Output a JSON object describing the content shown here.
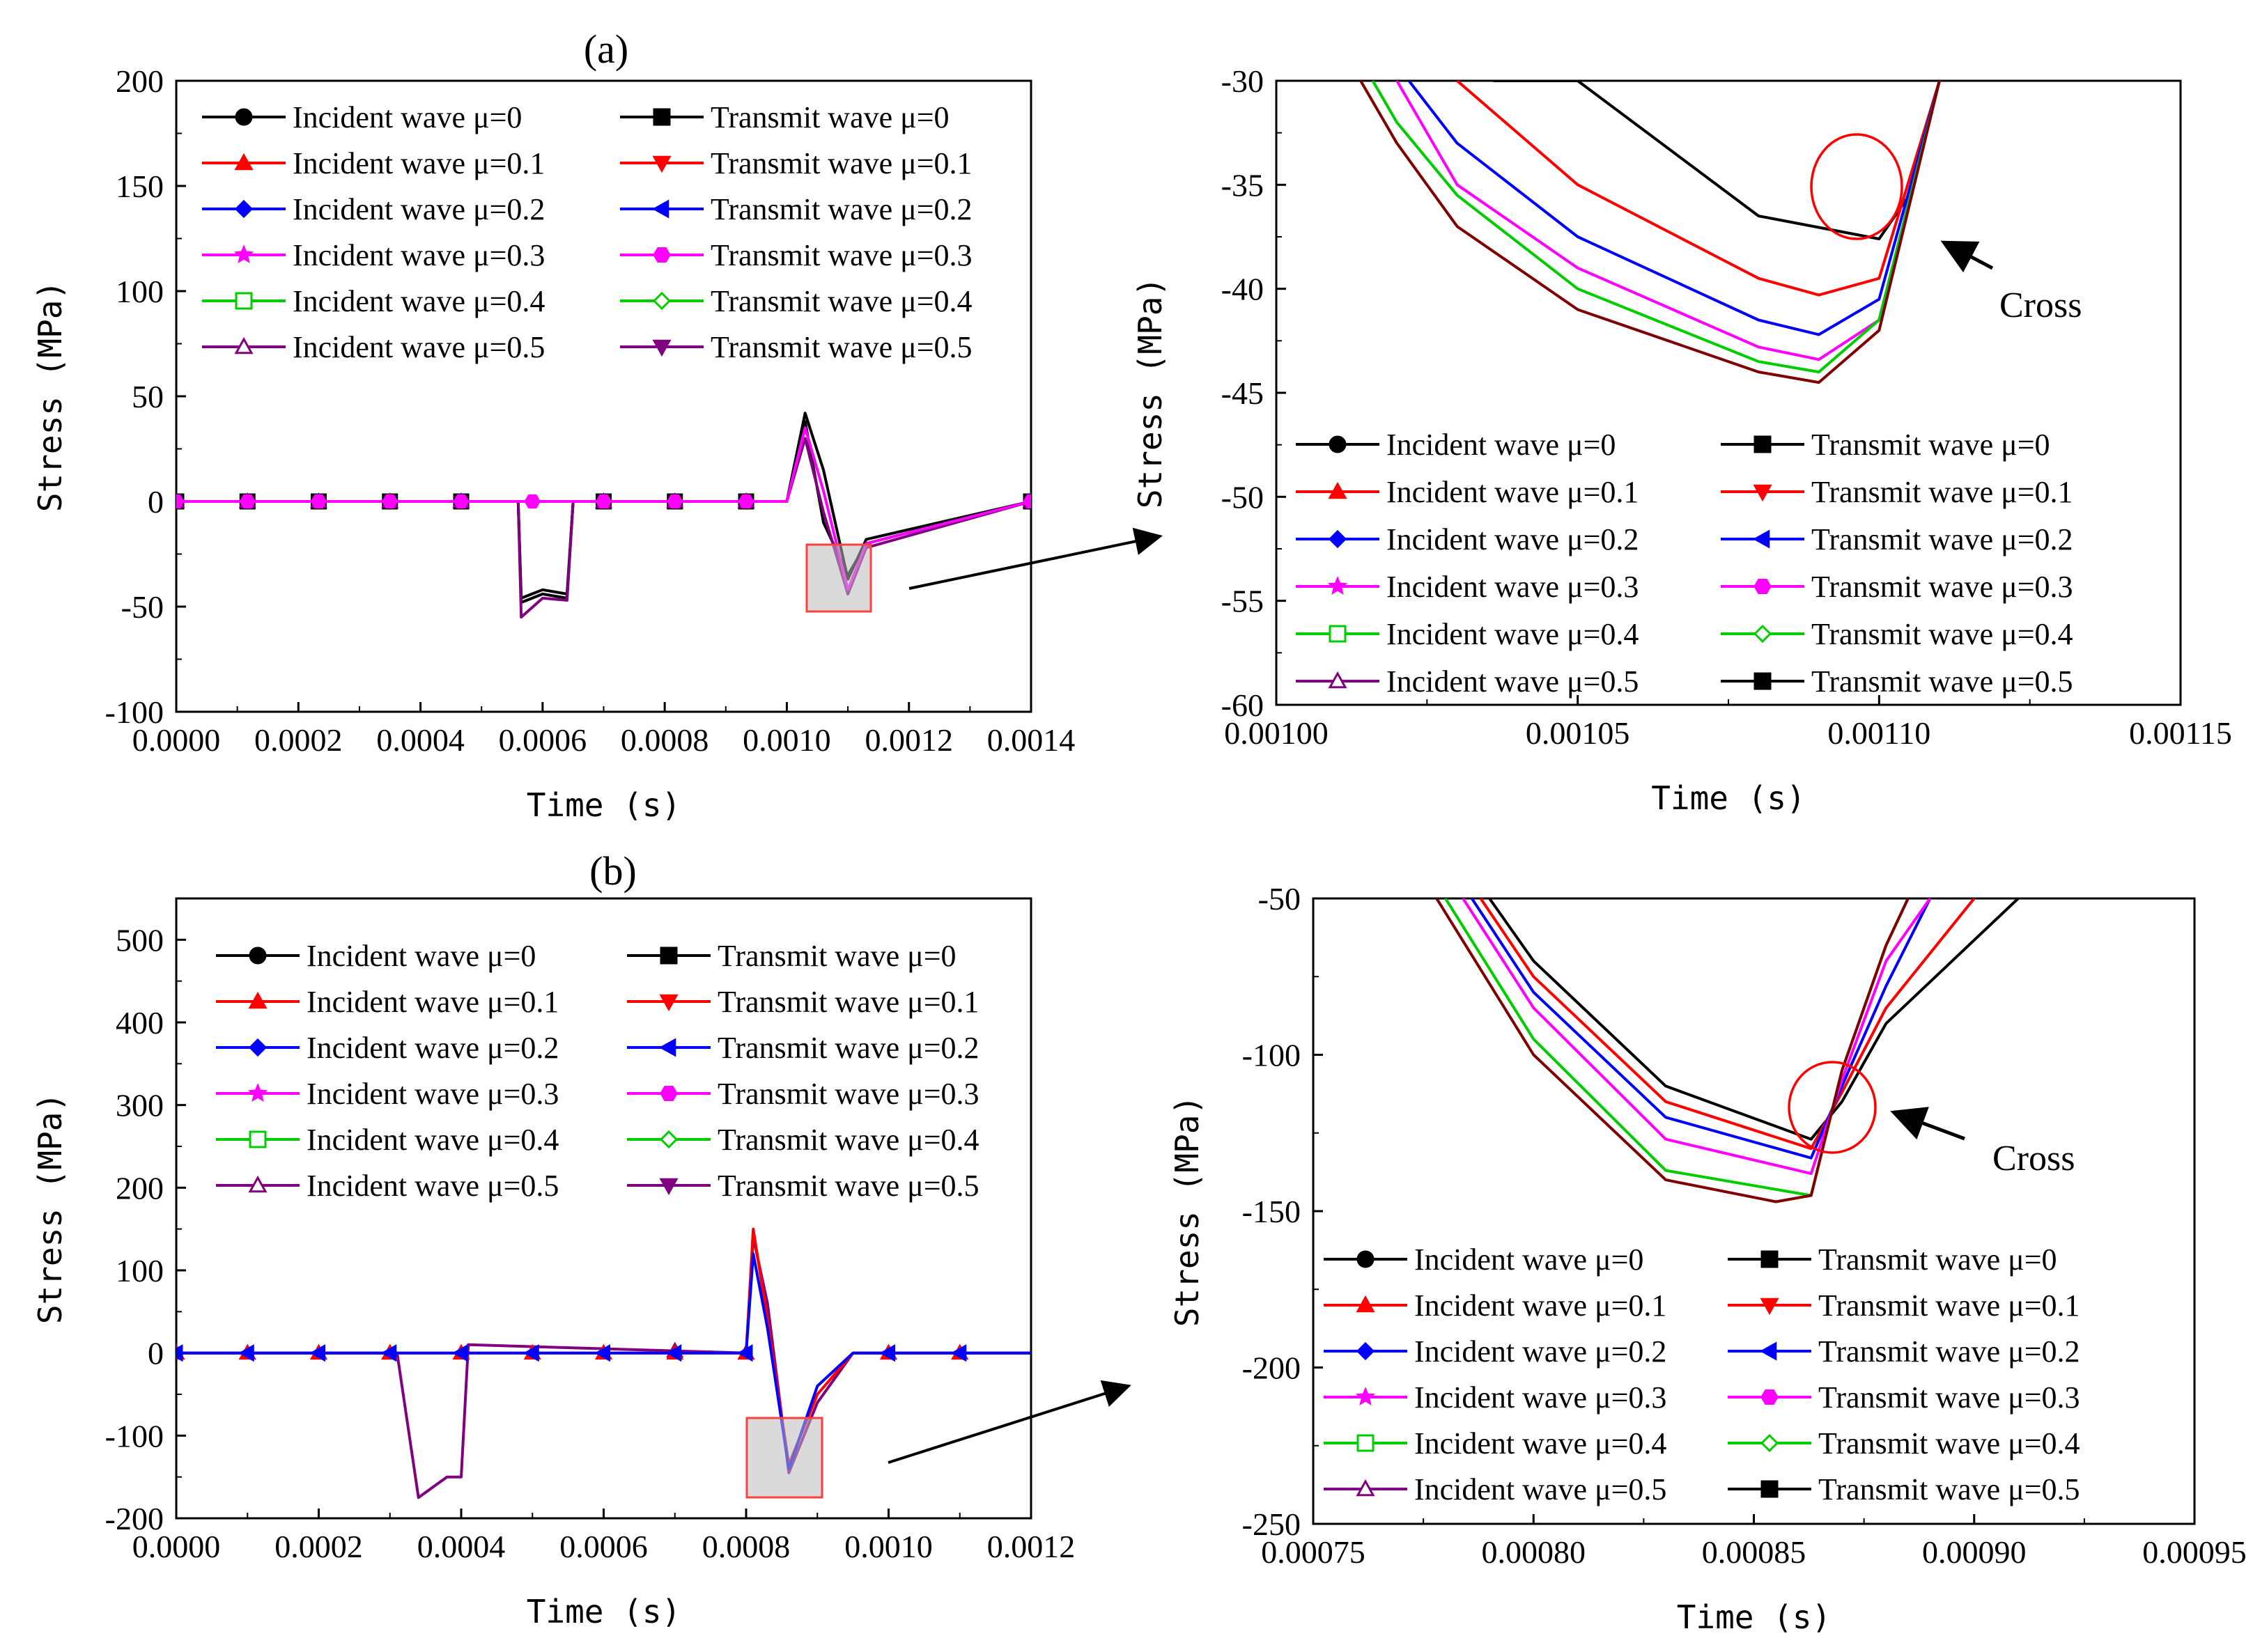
{
  "panel_labels": [
    "(a)",
    "(b)"
  ],
  "annotation": "Cross",
  "legend_entries": [
    "Incident wave μ=0",
    "Transmit wave μ=0",
    "Incident wave μ=0.1",
    "Transmit wave μ=0.1",
    "Incident wave μ=0.2",
    "Transmit wave μ=0.2",
    "Incident wave μ=0.3",
    "Transmit wave μ=0.3",
    "Incident wave μ=0.4",
    "Transmit wave μ=0.4",
    "Incident wave μ=0.5",
    "Transmit wave μ=0.5"
  ],
  "chart_data": [
    {
      "id": "a-full",
      "type": "line",
      "xlabel": "Time (s)",
      "ylabel": "Stress (MPa)",
      "xlim": [
        0,
        0.0014
      ],
      "ylim": [
        -100,
        200
      ],
      "xticks": [
        "0.0000",
        "0.0002",
        "0.0004",
        "0.0006",
        "0.0008",
        "0.0010",
        "0.0012",
        "0.0014"
      ],
      "yticks": [
        "-100",
        "-50",
        "0",
        "50",
        "100",
        "150",
        "200"
      ],
      "legend_transmit_last_label": "Transmit wave μ=0.5",
      "series": [
        {
          "name": "Incident wave μ=0",
          "color": "#000000",
          "marker": "circle",
          "x": [
            0,
            0.00056,
            0.000565,
            0.0006,
            0.00064,
            0.00065,
            0.001,
            0.00103,
            0.00106,
            0.0011,
            0.00113,
            0.0014
          ],
          "y": [
            0,
            0,
            -48,
            -44,
            -46,
            0,
            0,
            38,
            -10,
            -35,
            -20,
            0
          ]
        },
        {
          "name": "Transmit wave μ=0",
          "color": "#000000",
          "marker": "square",
          "x": [
            0,
            0.00056,
            0.000565,
            0.0006,
            0.00064,
            0.00065,
            0.001,
            0.00103,
            0.00106,
            0.0011,
            0.00113,
            0.0014
          ],
          "y": [
            0,
            0,
            -46,
            -42,
            -44,
            0,
            0,
            42,
            15,
            -37,
            -18,
            0
          ]
        },
        {
          "name": "Incident wave μ=0.5",
          "color": "#800080",
          "marker": "triangle-open",
          "x": [
            0,
            0.00056,
            0.000565,
            0.0006,
            0.00064,
            0.00065,
            0.001,
            0.00103,
            0.00106,
            0.0011,
            0.00113,
            0.0014
          ],
          "y": [
            0,
            0,
            -55,
            -46,
            -47,
            0,
            0,
            30,
            -5,
            -44,
            -22,
            0
          ]
        },
        {
          "name": "Transmit wave μ=0.3",
          "color": "#ff00ff",
          "marker": "hexagon",
          "x": [
            0,
            0.001,
            0.00103,
            0.00106,
            0.0011,
            0.00113,
            0.0014
          ],
          "y": [
            0,
            0,
            35,
            5,
            -42,
            -20,
            0
          ]
        }
      ]
    },
    {
      "id": "a-zoom",
      "type": "line",
      "xlabel": "Time (s)",
      "ylabel": "Stress (MPa)",
      "xlim": [
        0.001,
        0.00115
      ],
      "ylim": [
        -60,
        -30
      ],
      "xticks": [
        "0.00100",
        "0.00105",
        "0.00110",
        "0.00115"
      ],
      "yticks": [
        "-60",
        "-55",
        "-50",
        "-45",
        "-40",
        "-35",
        "-30"
      ],
      "legend_transmit_last_label": "Transmit wave μ=0.5",
      "series": [
        {
          "name": "μ=0",
          "color": "#000000",
          "x": [
            0.001036,
            0.00105,
            0.00108,
            0.0011,
            0.001105,
            0.00111
          ],
          "y": [
            -30,
            -30,
            -36.5,
            -37.6,
            -35.5,
            -30
          ]
        },
        {
          "name": "μ=0.1",
          "color": "#ff0000",
          "x": [
            0.00103,
            0.00105,
            0.00108,
            0.00109,
            0.0011,
            0.00111
          ],
          "y": [
            -30,
            -35,
            -39.5,
            -40.3,
            -39.5,
            -30
          ]
        },
        {
          "name": "μ=0.2",
          "color": "#0000ff",
          "x": [
            0.001022,
            0.00103,
            0.00105,
            0.00108,
            0.00109,
            0.0011,
            0.00111
          ],
          "y": [
            -30,
            -33,
            -37.5,
            -41.5,
            -42.2,
            -40.5,
            -30
          ]
        },
        {
          "name": "μ=0.3",
          "color": "#ff00ff",
          "x": [
            0.00102,
            0.00103,
            0.00105,
            0.00108,
            0.00109,
            0.0011,
            0.00111
          ],
          "y": [
            -30,
            -35,
            -39,
            -42.8,
            -43.4,
            -41.5,
            -30
          ]
        },
        {
          "name": "μ=0.4",
          "color": "#00cc00",
          "x": [
            0.001016,
            0.00102,
            0.00103,
            0.00105,
            0.00108,
            0.00109,
            0.0011,
            0.00111
          ],
          "y": [
            -30,
            -32,
            -35.5,
            -40,
            -43.5,
            -44,
            -41.5,
            -30
          ]
        },
        {
          "name": "μ=0.5",
          "color": "#800000",
          "x": [
            0.001014,
            0.00102,
            0.00103,
            0.00105,
            0.00108,
            0.00109,
            0.0011,
            0.00111
          ],
          "y": [
            -30,
            -33,
            -37,
            -41,
            -44,
            -44.5,
            -42,
            -30
          ]
        }
      ]
    },
    {
      "id": "b-full",
      "type": "line",
      "xlabel": "Time (s)",
      "ylabel": "Stress (MPa)",
      "xlim": [
        0,
        0.0012
      ],
      "ylim": [
        -200,
        550
      ],
      "xticks": [
        "0.0000",
        "0.0002",
        "0.0004",
        "0.0006",
        "0.0008",
        "0.0010",
        "0.0012"
      ],
      "yticks": [
        "-200",
        "-100",
        "0",
        "100",
        "200",
        "300",
        "400",
        "500"
      ],
      "legend_transmit_last_label": "Transmit wave μ=0.5",
      "series": [
        {
          "name": "Incident wave μ=0.5",
          "color": "#800080",
          "marker": "triangle-open",
          "x": [
            0,
            0.00031,
            0.00034,
            0.00038,
            0.0004,
            0.00041,
            0.0008,
            0.00081,
            0.00083,
            0.00086,
            0.0009,
            0.00095,
            0.0012
          ],
          "y": [
            0,
            0,
            -175,
            -150,
            -150,
            10,
            0,
            140,
            60,
            -145,
            -60,
            0,
            0
          ]
        },
        {
          "name": "Incident wave μ=0.1",
          "color": "#ff0000",
          "marker": "triangle",
          "x": [
            0,
            0.0008,
            0.00081,
            0.00083,
            0.00086,
            0.0009,
            0.00095,
            0.0012
          ],
          "y": [
            0,
            0,
            150,
            40,
            -135,
            -50,
            0,
            0
          ]
        },
        {
          "name": "Transmit wave μ=0.2",
          "color": "#0000ff",
          "marker": "triangle-left",
          "x": [
            0,
            0.0008,
            0.00081,
            0.00083,
            0.00086,
            0.0009,
            0.00095,
            0.0012
          ],
          "y": [
            0,
            0,
            120,
            30,
            -140,
            -40,
            0,
            0
          ]
        }
      ]
    },
    {
      "id": "b-zoom",
      "type": "line",
      "xlabel": "Time (s)",
      "ylabel": "Stress (MPa)",
      "xlim": [
        0.00075,
        0.00095
      ],
      "ylim": [
        -250,
        -50
      ],
      "xticks": [
        "0.00075",
        "0.00080",
        "0.00085",
        "0.00090",
        "0.00095"
      ],
      "yticks": [
        "-250",
        "-200",
        "-150",
        "-100",
        "-50"
      ],
      "legend_transmit_last_label": "Transmit wave μ=0.5",
      "series": [
        {
          "name": "μ=0",
          "color": "#000000",
          "x": [
            0.00079,
            0.0008,
            0.00083,
            0.000863,
            0.00087,
            0.00088,
            0.00091
          ],
          "y": [
            -50,
            -70,
            -110,
            -127,
            -115,
            -90,
            -50
          ]
        },
        {
          "name": "μ=0.1",
          "color": "#ff0000",
          "x": [
            0.000788,
            0.0008,
            0.00083,
            0.000863,
            0.00087,
            0.00088,
            0.0009
          ],
          "y": [
            -50,
            -75,
            -115,
            -130,
            -112,
            -85,
            -50
          ]
        },
        {
          "name": "μ=0.2",
          "color": "#0000ff",
          "x": [
            0.000786,
            0.0008,
            0.00083,
            0.000863,
            0.00087,
            0.00088,
            0.00089
          ],
          "y": [
            -50,
            -80,
            -120,
            -133,
            -110,
            -78,
            -50
          ]
        },
        {
          "name": "μ=0.3",
          "color": "#ff00ff",
          "x": [
            0.000784,
            0.0008,
            0.00083,
            0.000863,
            0.00087,
            0.00088,
            0.00089
          ],
          "y": [
            -50,
            -85,
            -127,
            -138,
            -108,
            -70,
            -50
          ]
        },
        {
          "name": "μ=0.4",
          "color": "#00cc00",
          "x": [
            0.00078,
            0.0008,
            0.00083,
            0.000863,
            0.00087,
            0.00088,
            0.000885
          ],
          "y": [
            -50,
            -95,
            -137,
            -145,
            -105,
            -65,
            -50
          ]
        },
        {
          "name": "μ=0.5",
          "color": "#800000",
          "x": [
            0.000778,
            0.0008,
            0.00083,
            0.000855,
            0.000863,
            0.00087,
            0.00088,
            0.000885
          ],
          "y": [
            -50,
            -100,
            -140,
            -147,
            -145,
            -105,
            -65,
            -50
          ]
        }
      ]
    }
  ]
}
